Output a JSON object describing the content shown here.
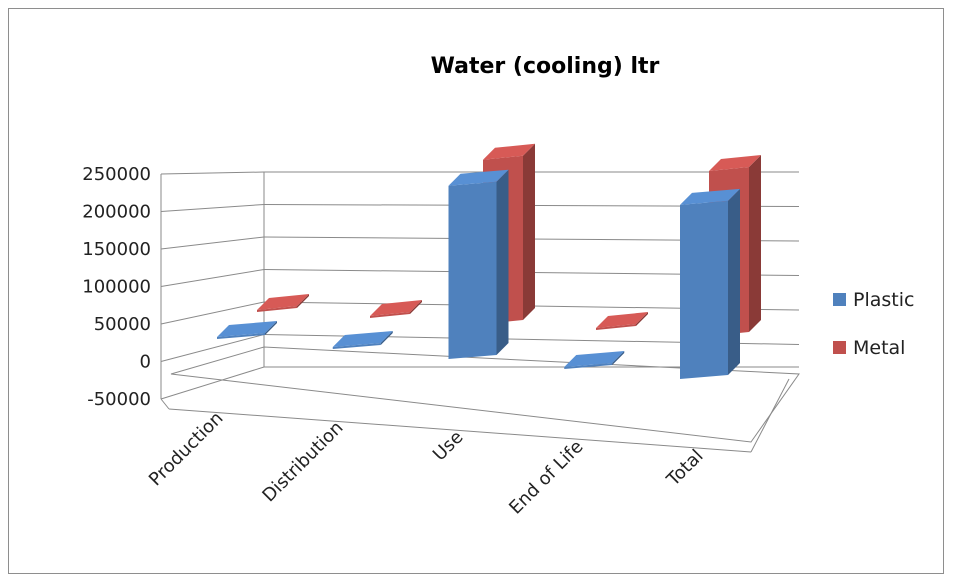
{
  "chart_data": {
    "type": "bar",
    "title": "Water (cooling) ltr",
    "categories": [
      "Production",
      "Distribution",
      "Use",
      "End of Life",
      "Total"
    ],
    "series": [
      {
        "name": "Plastic",
        "values": [
          400,
          300,
          210000,
          200,
          211000
        ],
        "color": "#4f81bd"
      },
      {
        "name": "Metal",
        "values": [
          600,
          500,
          225000,
          300,
          226000
        ],
        "color": "#c0504d"
      }
    ],
    "yticks": [
      "250000",
      "200000",
      "150000",
      "100000",
      "50000",
      "0",
      "-50000"
    ],
    "ylim": [
      -50000,
      250000
    ],
    "grid": true,
    "legend": "right",
    "view": "3d"
  }
}
